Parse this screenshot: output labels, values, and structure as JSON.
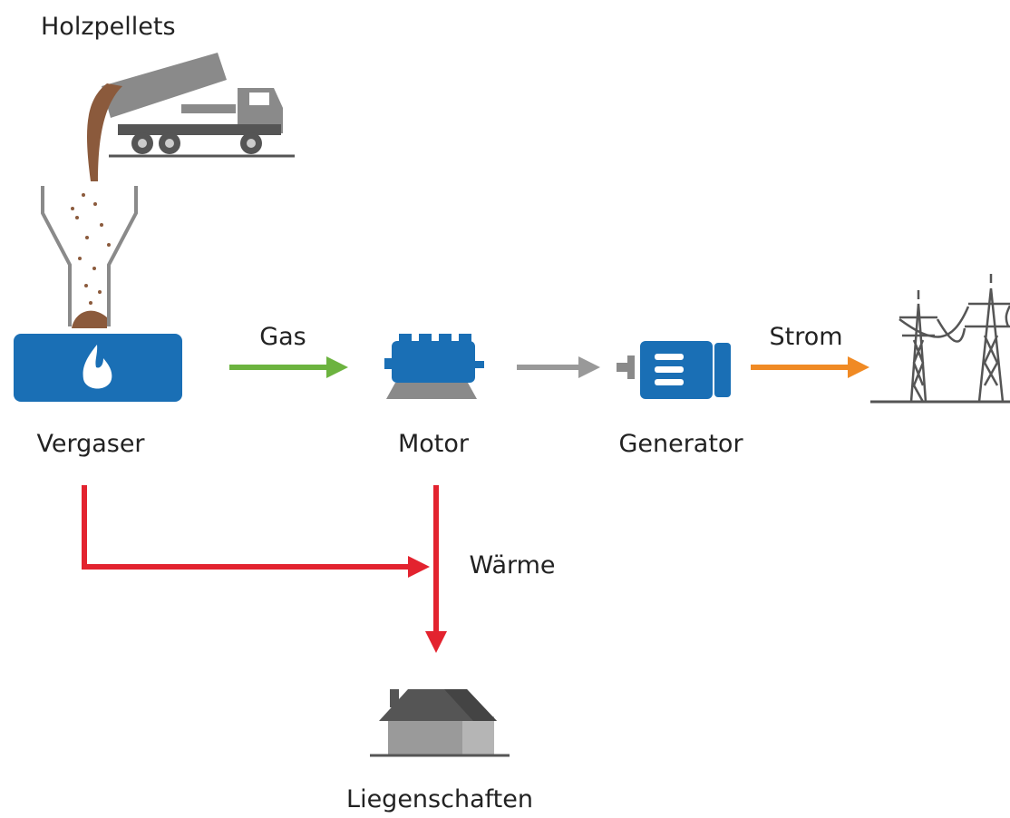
{
  "nodes": [
    {
      "label": "Holzpellets"
    },
    {
      "label": "Vergaser"
    },
    {
      "label": "Motor"
    },
    {
      "label": "Generator"
    },
    {
      "label": "Liegenschaften"
    }
  ],
  "edges": [
    {
      "label": "Gas"
    },
    {
      "label": "Strom"
    },
    {
      "label": "Wärme"
    }
  ]
}
